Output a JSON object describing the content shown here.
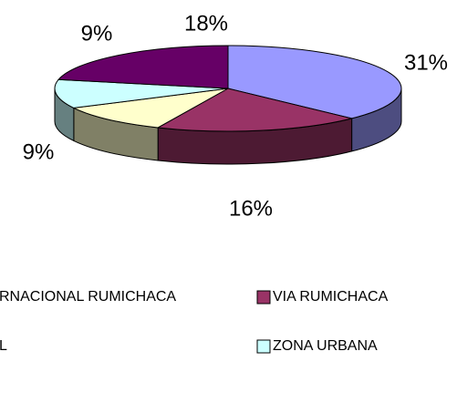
{
  "chart_data": {
    "type": "pie",
    "categories": [
      "RNACIONAL RUMICHACA",
      "VIA RUMICHACA",
      "L",
      "ZONA URBANA",
      null
    ],
    "values": [
      31,
      16,
      9,
      9,
      18
    ],
    "value_labels": [
      "31%",
      "16%",
      "9%",
      "9%",
      "18%"
    ],
    "colors": [
      "#9999FF",
      "#993366",
      "#FFFFCC",
      "#CCFFFF",
      "#660066"
    ],
    "three_d": true
  }
}
